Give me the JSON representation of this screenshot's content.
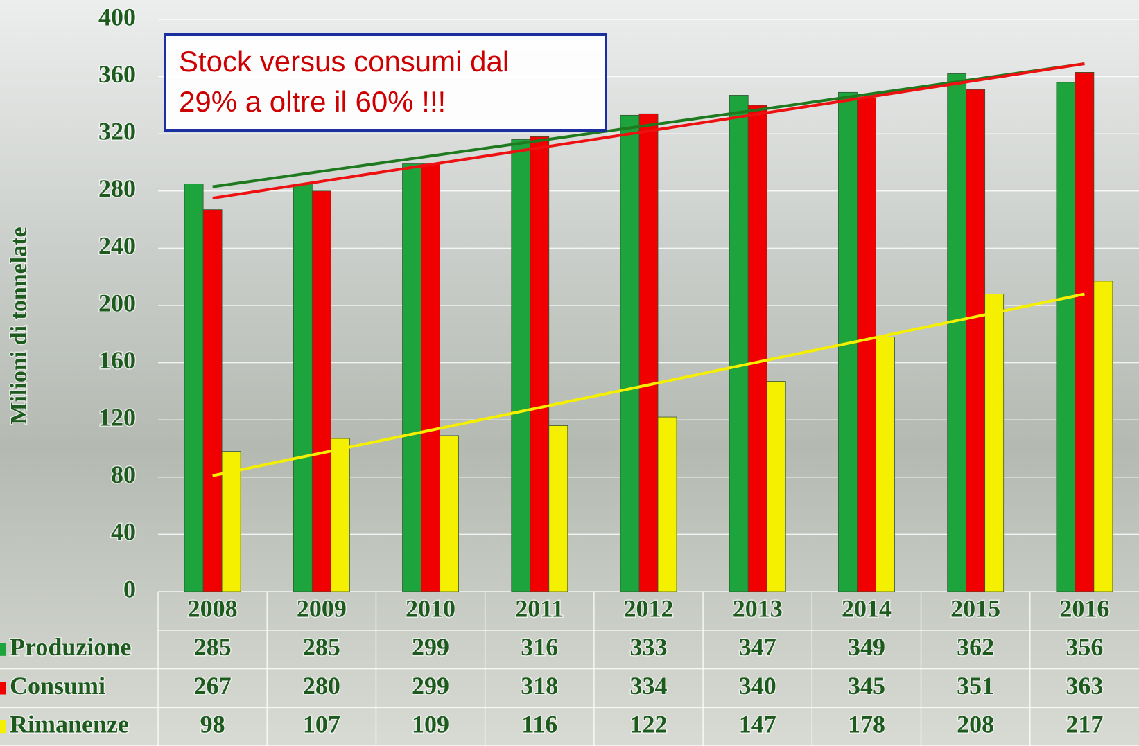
{
  "chart_data": {
    "type": "bar",
    "y_label": "Milioni di tonnelate",
    "annotation": [
      "Stock versus consumi dal",
      "29% a oltre il 60% !!!"
    ],
    "categories": [
      "2008",
      "2009",
      "2010",
      "2011",
      "2012",
      "2013",
      "2014",
      "2015",
      "2016"
    ],
    "series": [
      {
        "name": "Produzione",
        "color": "#1ea43c",
        "values": [
          285,
          285,
          299,
          316,
          333,
          347,
          349,
          362,
          356
        ]
      },
      {
        "name": "Consumi",
        "color": "#f00000",
        "values": [
          267,
          280,
          299,
          318,
          334,
          340,
          345,
          351,
          363
        ]
      },
      {
        "name": "Rimanenze",
        "color": "#f5f000",
        "values": [
          98,
          107,
          109,
          116,
          122,
          147,
          178,
          208,
          217
        ]
      }
    ],
    "trendlines": [
      {
        "color": "#1f7a1f",
        "values": [
          283,
          369
        ]
      },
      {
        "color": "#ee1111",
        "values": [
          275,
          369
        ]
      },
      {
        "color": "#f5f000",
        "values": [
          81,
          208
        ]
      }
    ],
    "ylim": [
      0,
      400
    ],
    "yticks": [
      0,
      40,
      80,
      120,
      160,
      200,
      240,
      280,
      320,
      360,
      400
    ],
    "grid": true
  }
}
